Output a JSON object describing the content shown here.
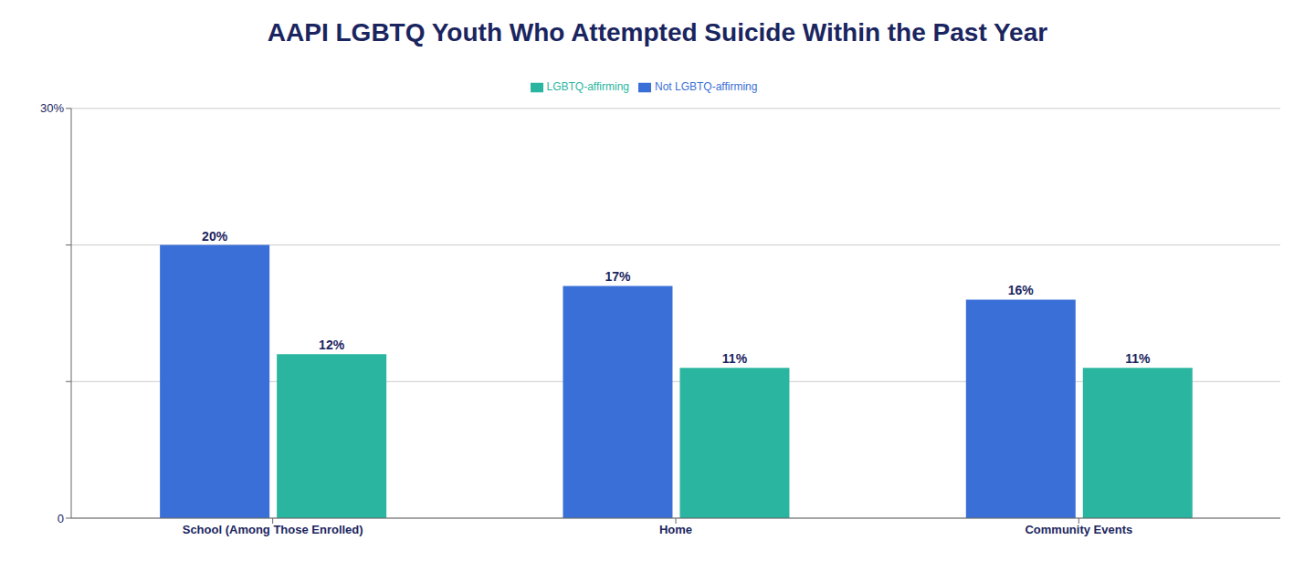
{
  "chart_data": {
    "type": "bar",
    "title": "AAPI LGBTQ Youth Who Attempted Suicide Within the Past Year",
    "categories": [
      "School (Among Those Enrolled)",
      "Home",
      "Community Events"
    ],
    "series": [
      {
        "name": "Not LGBTQ-affirming",
        "color": "#3a6fd8",
        "values": [
          20,
          17,
          16
        ],
        "value_labels": [
          "20%",
          "17%",
          "16%"
        ]
      },
      {
        "name": "LGBTQ-affirming",
        "color": "#2ab5a0",
        "values": [
          12,
          11,
          11
        ],
        "value_labels": [
          "12%",
          "11%",
          "11%"
        ]
      }
    ],
    "ylim": [
      0,
      30
    ],
    "yticks": [
      0,
      {
        "value": 10,
        "label": null
      },
      {
        "value": 20,
        "label": null
      },
      {
        "value": 30,
        "label": "30%"
      }
    ],
    "grid": true,
    "legend": "top",
    "data_labels": true
  }
}
